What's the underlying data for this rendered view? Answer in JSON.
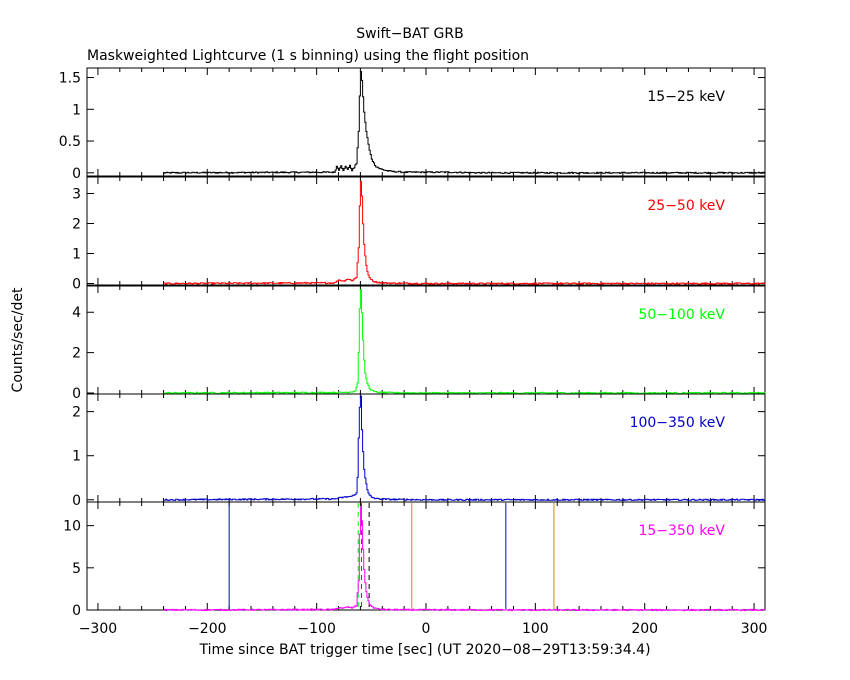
{
  "title": "Swift−BAT GRB",
  "subtitle": "Maskweighted Lightcurve (1 s binning) using the flight position",
  "xlabel": "Time since BAT trigger time [sec] (UT 2020−08−29T13:59:34.4)",
  "ylabel": "Counts/sec/det",
  "xlim": [
    -310,
    310
  ],
  "xticks": [
    -300,
    -200,
    -100,
    0,
    100,
    200,
    300
  ],
  "xtick_labels": [
    "−300",
    "−200",
    "−100",
    "0",
    "100",
    "200",
    "300"
  ],
  "chart_data": [
    {
      "type": "line",
      "band": "15−25 keV",
      "color": "#000000",
      "ylim": [
        -0.05,
        1.65
      ],
      "yticks": [
        0,
        0.5,
        1,
        1.5
      ],
      "ytick_labels": [
        "0",
        "0.5",
        "1",
        "1.5"
      ],
      "peak_time": -60,
      "peak_value": 1.6,
      "baseline_start": -240,
      "x": [
        -240,
        -84,
        -82,
        -80,
        -78,
        -76,
        -74,
        -72,
        -70,
        -68,
        -66,
        -64,
        -62,
        -61,
        -60,
        -59,
        -58,
        -57,
        -56,
        -55,
        -54,
        -53,
        -52,
        -50,
        -48,
        -46,
        -43,
        -40,
        -35,
        -30,
        -20,
        0,
        20,
        50,
        100,
        200,
        310
      ],
      "y": [
        0.0,
        0.01,
        0.1,
        0.05,
        0.12,
        0.03,
        0.1,
        0.06,
        0.11,
        0.04,
        0.08,
        0.15,
        0.65,
        1.2,
        1.6,
        1.45,
        1.2,
        0.95,
        0.8,
        0.65,
        0.55,
        0.45,
        0.35,
        0.22,
        0.15,
        0.1,
        0.07,
        0.05,
        0.03,
        0.02,
        0.01,
        0.01,
        0.01,
        0.0,
        0.0,
        0.0,
        0.0
      ]
    },
    {
      "type": "line",
      "band": "25−50 keV",
      "color": "#ff0000",
      "ylim": [
        -0.05,
        3.55
      ],
      "yticks": [
        0,
        1,
        2,
        3
      ],
      "ytick_labels": [
        "0",
        "1",
        "2",
        "3"
      ],
      "peak_time": -60,
      "peak_value": 3.4,
      "baseline_start": -240,
      "x": [
        -240,
        -84,
        -80,
        -76,
        -72,
        -68,
        -64,
        -62,
        -61,
        -60,
        -59,
        -58,
        -57,
        -56,
        -55,
        -54,
        -53,
        -52,
        -50,
        -48,
        -45,
        -40,
        -30,
        0,
        100,
        310
      ],
      "y": [
        0.0,
        0.02,
        0.12,
        0.08,
        0.15,
        0.1,
        0.2,
        1.2,
        2.6,
        3.4,
        2.9,
        2.0,
        1.3,
        0.9,
        0.6,
        0.4,
        0.3,
        0.2,
        0.12,
        0.07,
        0.04,
        0.02,
        0.01,
        0.0,
        0.0,
        0.0
      ]
    },
    {
      "type": "line",
      "band": "50−100 keV",
      "color": "#00ff00",
      "ylim": [
        -0.05,
        5.3
      ],
      "yticks": [
        0,
        2,
        4
      ],
      "ytick_labels": [
        "0",
        "2",
        "4"
      ],
      "peak_time": -60,
      "peak_value": 5.1,
      "baseline_start": -240,
      "x": [
        -240,
        -80,
        -70,
        -65,
        -63,
        -62,
        -61,
        -60,
        -59,
        -58,
        -57,
        -56,
        -55,
        -54,
        -53,
        -52,
        -50,
        -47,
        -43,
        -38,
        -30,
        0,
        100,
        310
      ],
      "y": [
        0.0,
        0.02,
        0.05,
        0.1,
        0.5,
        2.0,
        4.2,
        5.1,
        4.0,
        2.6,
        1.6,
        1.0,
        0.7,
        0.5,
        0.35,
        0.25,
        0.12,
        0.06,
        0.03,
        0.02,
        0.01,
        0.0,
        0.0,
        0.0
      ]
    },
    {
      "type": "line",
      "band": "100−350 keV",
      "color": "#0000cc",
      "ylim": [
        -0.05,
        2.4
      ],
      "yticks": [
        0,
        1,
        2
      ],
      "ytick_labels": [
        "0",
        "1",
        "2"
      ],
      "peak_time": -60,
      "peak_value": 2.35,
      "baseline_start": -240,
      "x": [
        -240,
        -84,
        -75,
        -68,
        -64,
        -63,
        -62,
        -61,
        -60,
        -59,
        -58,
        -57,
        -56,
        -55,
        -54,
        -53,
        -52,
        -50,
        -47,
        -43,
        -35,
        0,
        100,
        310
      ],
      "y": [
        0.0,
        0.02,
        0.06,
        0.08,
        0.15,
        0.5,
        1.4,
        2.1,
        2.35,
        1.6,
        1.1,
        0.7,
        0.5,
        0.35,
        0.22,
        0.15,
        0.1,
        0.06,
        0.03,
        0.02,
        0.01,
        0.0,
        0.0,
        0.0
      ]
    },
    {
      "type": "line",
      "band": "15−350 keV",
      "color": "#ff00ff",
      "ylim": [
        0,
        12.8
      ],
      "yticks": [
        0,
        5,
        10
      ],
      "ytick_labels": [
        "0",
        "5",
        "10"
      ],
      "peak_time": -60,
      "peak_value": 12.3,
      "baseline_start": -240,
      "x": [
        -240,
        -84,
        -80,
        -76,
        -72,
        -68,
        -64,
        -62,
        -61,
        -60,
        -59,
        -58,
        -57,
        -56,
        -55,
        -54,
        -53,
        -52,
        -50,
        -47,
        -43,
        -38,
        -30,
        0,
        100,
        310
      ],
      "y": [
        0.0,
        0.05,
        0.3,
        0.2,
        0.35,
        0.25,
        0.5,
        3.5,
        9.0,
        12.3,
        10.5,
        7.2,
        4.8,
        3.3,
        2.2,
        1.5,
        1.0,
        0.7,
        0.4,
        0.22,
        0.1,
        0.06,
        0.03,
        0.02,
        0.0,
        0.0
      ],
      "vlines": [
        {
          "x": -180,
          "color": "#0000cc",
          "style": "solid"
        },
        {
          "x": -62,
          "color": "#00ff00",
          "style": "dashed"
        },
        {
          "x": -59,
          "color": "#ff0000",
          "style": "dashed"
        },
        {
          "x": -52,
          "color": "#000000",
          "style": "dashed"
        },
        {
          "x": -13,
          "color": "#cc8800",
          "style": "solid"
        },
        {
          "x": 73,
          "color": "#0000cc",
          "style": "solid"
        },
        {
          "x": 117,
          "color": "#cc8800",
          "style": "solid"
        }
      ]
    }
  ]
}
